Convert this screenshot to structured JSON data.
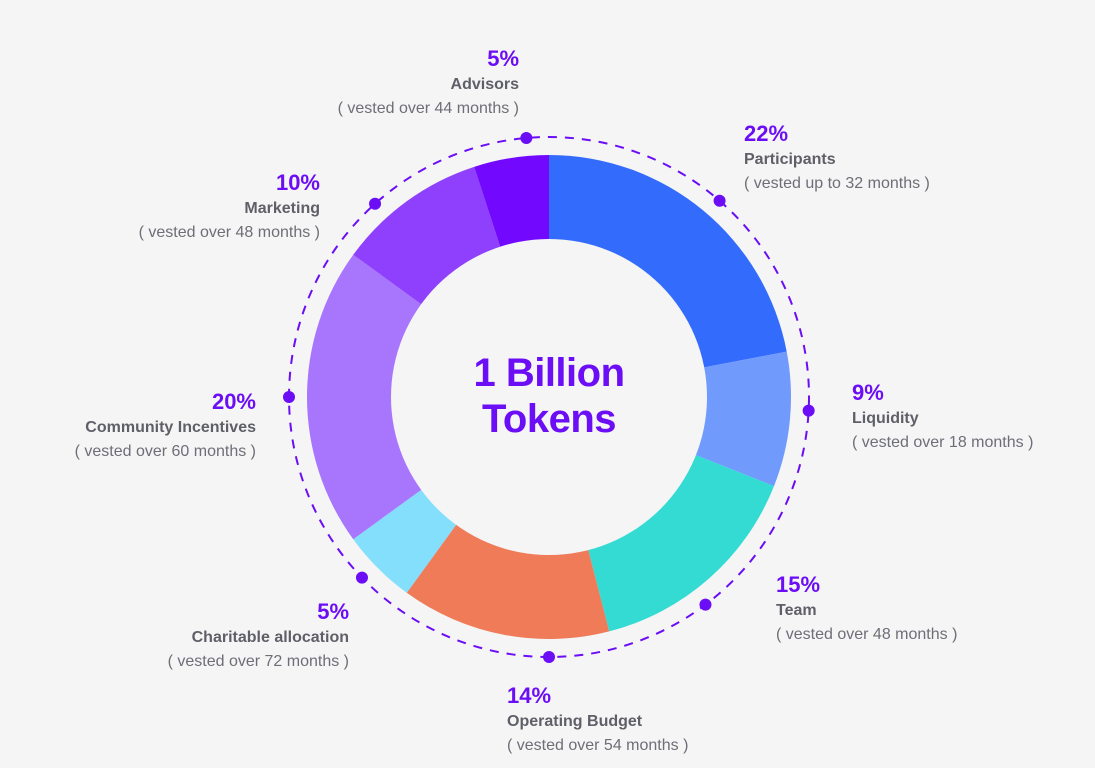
{
  "center": {
    "line1": "1 Billion",
    "line2": "Tokens"
  },
  "labels": {
    "advisors": {
      "pct": "5%",
      "name": "Advisors",
      "vest": "( vested over 44 months )"
    },
    "participants": {
      "pct": "22%",
      "name": "Participants",
      "vest": "( vested up to 32 months )"
    },
    "liquidity": {
      "pct": "9%",
      "name": "Liquidity",
      "vest": "( vested over 18 months )"
    },
    "team": {
      "pct": "15%",
      "name": "Team",
      "vest": "( vested over 48 months )"
    },
    "operating": {
      "pct": "14%",
      "name": "Operating Budget",
      "vest": "( vested over 54 months )"
    },
    "charitable": {
      "pct": "5%",
      "name": "Charitable allocation",
      "vest": "( vested over 72 months )"
    },
    "community": {
      "pct": "20%",
      "name": "Community Incentives",
      "vest": "( vested over 60 months )"
    },
    "marketing": {
      "pct": "10%",
      "name": "Marketing",
      "vest": "( vested over 48 months )"
    }
  },
  "chart_data": {
    "type": "pie",
    "subtype": "donut",
    "title": "1 Billion Tokens",
    "total": "1 Billion Tokens",
    "categories": [
      "Participants",
      "Liquidity",
      "Team",
      "Operating Budget",
      "Charitable allocation",
      "Community Incentives",
      "Marketing",
      "Advisors"
    ],
    "values": [
      22,
      9,
      15,
      14,
      5,
      20,
      10,
      5
    ],
    "vesting": [
      "up to 32 months",
      "over 18 months",
      "over 48 months",
      "over 54 months",
      "over 72 months",
      "over 60 months",
      "over 48 months",
      "over 44 months"
    ],
    "colors": [
      "#336cfd",
      "#719afd",
      "#33dbd3",
      "#ef7b58",
      "#84dffd",
      "#a875fd",
      "#8e40fd",
      "#7208fd"
    ],
    "start_angle_deg": 0,
    "direction": "clockwise",
    "accent_color": "#6b0df5",
    "legend_position": "labels around ring"
  }
}
